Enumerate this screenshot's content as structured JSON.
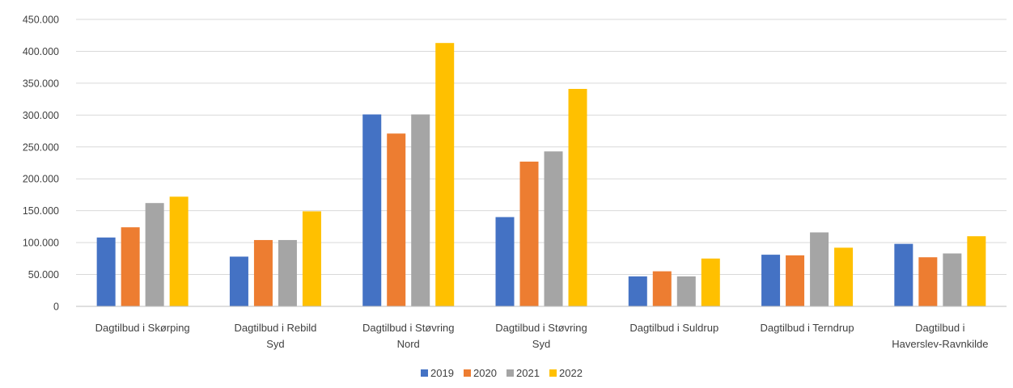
{
  "chart_data": {
    "type": "bar",
    "title": "",
    "xlabel": "",
    "ylabel": "",
    "ylim": [
      0,
      450000
    ],
    "ytick_step": 50000,
    "ytick_labels": [
      "0",
      "50.000",
      "100.000",
      "150.000",
      "200.000",
      "250.000",
      "300.000",
      "350.000",
      "400.000",
      "450.000"
    ],
    "grid": true,
    "legend_position": "bottom",
    "categories": [
      [
        "Dagtilbud i Skørping"
      ],
      [
        "Dagtilbud i Rebild",
        "Syd"
      ],
      [
        "Dagtilbud i Støvring",
        "Nord"
      ],
      [
        "Dagtilbud i Støvring",
        "Syd"
      ],
      [
        "Dagtilbud i Suldrup"
      ],
      [
        "Dagtilbud i Terndrup"
      ],
      [
        "Dagtilbud i",
        "Haverslev-Ravnkilde"
      ]
    ],
    "series": [
      {
        "name": "2019",
        "color": "#4472c4",
        "values": [
          108000,
          78000,
          301000,
          140000,
          47000,
          81000,
          98000
        ]
      },
      {
        "name": "2020",
        "color": "#ed7d31",
        "values": [
          124000,
          104000,
          271000,
          227000,
          55000,
          80000,
          77000
        ]
      },
      {
        "name": "2021",
        "color": "#a5a5a5",
        "values": [
          162000,
          104000,
          301000,
          243000,
          47000,
          116000,
          83000
        ]
      },
      {
        "name": "2022",
        "color": "#ffc000",
        "values": [
          172000,
          149000,
          413000,
          341000,
          75000,
          92000,
          110000
        ]
      }
    ]
  }
}
